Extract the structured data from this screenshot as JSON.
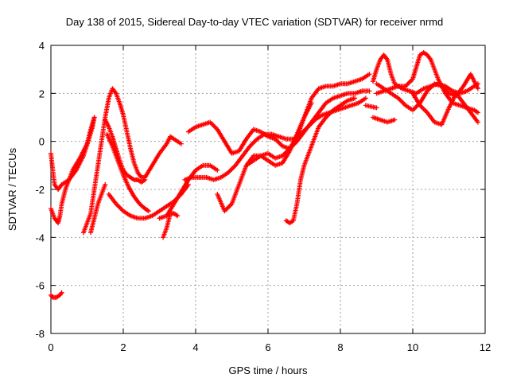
{
  "chart_data": {
    "type": "scatter",
    "title": "Day 138 of 2015, Sidereal Day-to-day VTEC variation (SDTVAR) for receiver nrmd",
    "xlabel": "GPS time / hours",
    "ylabel": "SDTVAR / TECUs",
    "xlim": [
      0,
      12
    ],
    "ylim": [
      -8,
      4
    ],
    "xticks": [
      "0",
      "2",
      "4",
      "6",
      "8",
      "10",
      "12"
    ],
    "yticks": [
      "-8",
      "-6",
      "-4",
      "-2",
      "0",
      "2",
      "4"
    ],
    "grid": true,
    "legend": "none",
    "marker": "+",
    "color": "#ff0000",
    "series": [
      {
        "x": [
          0.0,
          0.1,
          0.2,
          0.3,
          0.5,
          0.7,
          0.9,
          1.05,
          1.15,
          1.2
        ],
        "y": [
          -0.5,
          -1.8,
          -2.0,
          -1.8,
          -1.6,
          -1.2,
          -0.6,
          0.1,
          0.6,
          1.0
        ]
      },
      {
        "x": [
          0.0,
          0.05,
          0.15,
          0.25,
          0.3
        ],
        "y": [
          -6.4,
          -6.5,
          -6.5,
          -6.4,
          -6.3
        ]
      },
      {
        "x": [
          0.0,
          0.1,
          0.2,
          0.25,
          0.3,
          0.4,
          0.6,
          0.8,
          1.0,
          1.1,
          1.2
        ],
        "y": [
          -2.8,
          -3.2,
          -3.4,
          -3.1,
          -2.6,
          -2.0,
          -1.2,
          -0.7,
          -0.1,
          0.5,
          1.0
        ]
      },
      {
        "x": [
          0.9,
          1.0,
          1.1,
          1.2,
          1.3,
          1.4,
          1.5,
          1.6,
          1.7,
          1.8,
          1.9,
          2.0,
          2.1,
          2.2,
          2.3,
          2.4,
          2.5,
          2.6,
          2.8,
          3.0,
          3.2,
          3.3,
          3.4,
          3.6
        ],
        "y": [
          -3.8,
          -3.4,
          -3.0,
          -2.0,
          -1.0,
          0.0,
          1.0,
          1.8,
          2.2,
          2.0,
          1.6,
          1.1,
          0.4,
          -0.3,
          -0.9,
          -1.3,
          -1.5,
          -1.5,
          -1.0,
          -0.5,
          -0.1,
          0.2,
          0.1,
          -0.1
        ]
      },
      {
        "x": [
          1.5,
          1.6,
          1.7,
          1.8,
          1.9,
          2.0,
          2.1,
          2.2,
          2.3,
          2.4,
          2.5,
          2.6
        ],
        "y": [
          0.9,
          0.6,
          0.2,
          -0.3,
          -0.8,
          -1.2,
          -1.4,
          -1.5,
          -1.6,
          -1.6,
          -1.7,
          -1.6
        ]
      },
      {
        "x": [
          1.55,
          1.7,
          1.85,
          2.0,
          2.15,
          2.3,
          2.45,
          2.6,
          2.7
        ],
        "y": [
          0.3,
          -0.2,
          -0.8,
          -1.4,
          -1.9,
          -2.3,
          -2.6,
          -2.8,
          -2.9
        ]
      },
      {
        "x": [
          1.6,
          1.8,
          2.0,
          2.2,
          2.4,
          2.6,
          2.8,
          3.0,
          3.2,
          3.4,
          3.6,
          3.8
        ],
        "y": [
          -2.2,
          -2.6,
          -2.9,
          -3.1,
          -3.2,
          -3.2,
          -3.1,
          -2.9,
          -2.7,
          -2.5,
          -2.2,
          -1.8
        ]
      },
      {
        "x": [
          1.1,
          1.2,
          1.3,
          1.4,
          1.5
        ],
        "y": [
          -3.8,
          -3.2,
          -2.6,
          -2.2,
          -1.8
        ]
      },
      {
        "x": [
          3.1,
          3.2,
          3.3,
          3.4,
          3.5
        ],
        "y": [
          -4.0,
          -3.6,
          -3.0,
          -3.0,
          -3.1
        ]
      },
      {
        "x": [
          3.0,
          3.2,
          3.4,
          3.6,
          3.8,
          4.0,
          4.2,
          4.4,
          4.6
        ],
        "y": [
          -3.2,
          -3.1,
          -2.6,
          -2.1,
          -1.6,
          -1.2,
          -1.0,
          -1.0,
          -1.2
        ]
      },
      {
        "x": [
          3.7,
          3.9,
          4.1,
          4.3,
          4.5,
          4.7,
          4.9,
          5.1,
          5.3,
          5.5,
          5.7,
          5.9,
          6.1,
          6.3,
          6.5,
          6.7,
          6.9,
          7.1,
          7.3,
          7.5,
          7.7,
          7.9,
          8.1,
          8.3,
          8.5,
          8.7
        ],
        "y": [
          -1.6,
          -1.5,
          -1.5,
          -1.5,
          -1.6,
          -1.5,
          -1.3,
          -1.0,
          -0.6,
          -0.2,
          0.1,
          0.3,
          0.3,
          0.2,
          0.1,
          0.1,
          0.3,
          0.6,
          0.9,
          1.1,
          1.2,
          1.3,
          1.4,
          1.5,
          1.6,
          1.8
        ]
      },
      {
        "x": [
          3.8,
          4.0,
          4.2,
          4.4,
          4.6,
          4.8,
          5.0,
          5.2,
          5.4,
          5.6,
          5.8,
          6.0,
          6.2,
          6.4,
          6.6,
          6.8,
          7.0,
          7.2,
          7.4,
          7.6,
          7.8,
          8.0,
          8.2,
          8.4,
          8.6,
          8.8
        ],
        "y": [
          0.4,
          0.6,
          0.7,
          0.8,
          0.5,
          0.0,
          -0.5,
          -0.4,
          0.1,
          0.5,
          0.4,
          0.2,
          0.1,
          -0.2,
          -0.3,
          0.2,
          1.0,
          1.8,
          2.2,
          2.3,
          2.3,
          2.4,
          2.4,
          2.5,
          2.6,
          2.8
        ]
      },
      {
        "x": [
          4.6,
          4.8,
          5.0,
          5.2,
          5.4,
          5.6,
          5.8,
          6.0,
          6.2,
          6.4,
          6.6,
          6.8,
          7.0,
          7.2
        ],
        "y": [
          -2.2,
          -2.9,
          -2.6,
          -1.8,
          -1.0,
          -0.6,
          -0.6,
          -0.8,
          -1.0,
          -0.9,
          -0.4,
          0.3,
          1.0,
          1.6
        ]
      },
      {
        "x": [
          5.4,
          5.6,
          5.8,
          6.0,
          6.2,
          6.4,
          6.6,
          6.8,
          7.0,
          7.2,
          7.4,
          7.6,
          7.8,
          8.0,
          8.2,
          8.4,
          8.6,
          8.8
        ],
        "y": [
          -1.0,
          -0.8,
          -0.6,
          -0.5,
          -0.7,
          -0.6,
          -0.3,
          0.0,
          0.4,
          0.8,
          1.2,
          1.6,
          1.8,
          1.9,
          2.0,
          2.0,
          2.1,
          2.1
        ]
      },
      {
        "x": [
          6.5,
          6.6,
          6.7,
          6.8,
          6.9,
          7.0,
          7.1,
          7.2,
          7.3,
          7.4,
          7.6,
          7.8,
          8.0,
          8.2,
          8.4
        ],
        "y": [
          -3.3,
          -3.4,
          -3.3,
          -2.6,
          -1.6,
          -1.0,
          -0.6,
          -0.2,
          0.2,
          0.6,
          1.0,
          1.3,
          1.5,
          1.7,
          1.8
        ]
      },
      {
        "x": [
          8.9,
          9.0,
          9.1,
          9.2,
          9.3,
          9.4,
          9.5,
          9.7,
          9.9,
          10.1,
          10.3,
          10.5,
          10.7,
          10.9,
          11.1,
          11.3,
          11.5,
          11.7,
          11.8
        ],
        "y": [
          2.5,
          3.0,
          3.4,
          3.6,
          3.4,
          2.8,
          2.4,
          2.2,
          2.1,
          2.0,
          2.2,
          2.3,
          2.4,
          2.3,
          2.1,
          2.0,
          2.1,
          2.3,
          2.4
        ]
      },
      {
        "x": [
          9.0,
          9.2,
          9.4,
          9.6,
          9.8,
          10.0,
          10.1,
          10.2,
          10.3,
          10.4,
          10.5,
          10.6,
          10.7,
          10.9,
          11.1,
          11.3,
          11.5,
          11.7,
          11.8
        ],
        "y": [
          2.0,
          2.1,
          2.2,
          2.3,
          2.3,
          2.6,
          3.1,
          3.6,
          3.7,
          3.6,
          3.4,
          3.0,
          2.6,
          2.0,
          1.6,
          1.5,
          1.4,
          1.3,
          1.2
        ]
      },
      {
        "x": [
          9.0,
          9.2,
          9.4,
          9.6,
          9.8,
          10.0,
          10.2,
          10.4,
          10.6,
          10.8,
          11.0,
          11.2,
          11.4,
          11.6,
          11.8
        ],
        "y": [
          2.4,
          2.2,
          2.0,
          1.8,
          1.5,
          1.3,
          1.6,
          2.1,
          2.4,
          2.3,
          2.0,
          1.9,
          2.3,
          2.8,
          2.2
        ]
      },
      {
        "x": [
          10.0,
          10.2,
          10.4,
          10.6,
          10.8,
          11.0,
          11.2,
          11.4,
          11.6,
          11.8
        ],
        "y": [
          2.0,
          1.5,
          1.2,
          0.8,
          0.7,
          1.4,
          2.0,
          1.6,
          1.2,
          0.8
        ]
      },
      {
        "x": [
          8.9,
          9.1,
          9.3,
          9.5
        ],
        "y": [
          1.0,
          0.9,
          0.8,
          0.9
        ]
      },
      {
        "x": [
          8.7,
          9.0
        ],
        "y": [
          1.5,
          1.4
        ]
      }
    ]
  }
}
